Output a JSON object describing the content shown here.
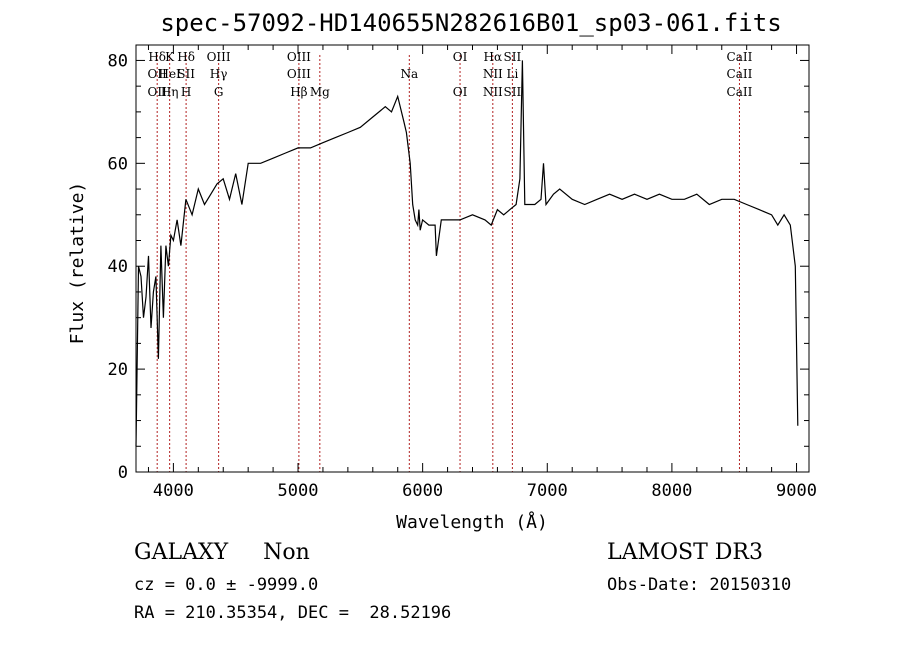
{
  "chart_data": {
    "type": "line",
    "title": "spec-57092-HD140655N282616B01_sp03-061.fits",
    "xlabel": "Wavelength (Å)",
    "ylabel": "Flux (relative)",
    "xlim": [
      3700,
      9100
    ],
    "ylim": [
      0,
      83
    ],
    "x_ticks": [
      4000,
      5000,
      6000,
      7000,
      8000,
      9000
    ],
    "y_ticks": [
      0,
      20,
      40,
      60,
      80
    ],
    "grid": false,
    "series": [
      {
        "x": [
          3700,
          3720,
          3740,
          3760,
          3780,
          3800,
          3820,
          3840,
          3860,
          3880,
          3900,
          3920,
          3940,
          3960,
          3980,
          4000,
          4030,
          4060,
          4100,
          4150,
          4200,
          4250,
          4300,
          4350,
          4400,
          4450,
          4500,
          4550,
          4600,
          4700,
          4800,
          4900,
          5000,
          5100,
          5200,
          5300,
          5400,
          5500,
          5600,
          5700,
          5750,
          5800,
          5850,
          5870,
          5900,
          5920,
          5940,
          5960,
          5970,
          5980,
          6000,
          6050,
          6100,
          6110,
          6150,
          6200,
          6300,
          6400,
          6500,
          6550,
          6600,
          6650,
          6700,
          6750,
          6780,
          6800,
          6820,
          6850,
          6900,
          6950,
          6970,
          6990,
          7050,
          7100,
          7200,
          7300,
          7400,
          7500,
          7600,
          7700,
          7800,
          7900,
          8000,
          8100,
          8200,
          8300,
          8400,
          8500,
          8600,
          8700,
          8800,
          8850,
          8900,
          8950,
          8970,
          8990,
          9010
        ],
        "values": [
          5,
          40,
          38,
          30,
          34,
          42,
          28,
          35,
          38,
          22,
          44,
          30,
          44,
          40,
          46,
          45,
          49,
          44,
          53,
          50,
          55,
          52,
          54,
          56,
          57,
          53,
          58,
          52,
          60,
          60,
          61,
          62,
          63,
          63,
          64,
          65,
          66,
          67,
          69,
          71,
          70,
          73,
          68,
          66,
          60,
          52,
          49,
          48,
          51,
          47,
          49,
          48,
          48,
          42,
          49,
          49,
          49,
          50,
          49,
          48,
          51,
          50,
          51,
          52,
          57,
          80,
          52,
          52,
          52,
          53,
          60,
          52,
          54,
          55,
          53,
          52,
          53,
          54,
          53,
          54,
          53,
          54,
          53,
          53,
          54,
          52,
          53,
          53,
          52,
          51,
          50,
          48,
          50,
          48,
          44,
          40,
          9
        ]
      }
    ],
    "line_labels": [
      {
        "x": 3870,
        "lines": [
          [
            "Hδ",
            0
          ],
          [
            "OII",
            1
          ],
          [
            "OII",
            2
          ]
        ]
      },
      {
        "x": 3970,
        "lines": [
          [
            "K",
            0
          ],
          [
            "HeI",
            1
          ],
          [
            "Hη",
            2
          ]
        ]
      },
      {
        "x": 4102,
        "lines": [
          [
            "Hδ",
            0
          ],
          [
            "SII",
            1
          ],
          [
            "H",
            2
          ]
        ]
      },
      {
        "x": 4363,
        "lines": [
          [
            "OIII",
            0
          ],
          [
            "Hγ",
            1
          ],
          [
            "G",
            2
          ]
        ]
      },
      {
        "x": 5007,
        "lines": [
          [
            "OIII",
            0
          ],
          [
            "OIII",
            1
          ],
          [
            "Hβ",
            2
          ]
        ]
      },
      {
        "x": 5175,
        "lines": [
          [
            "Mg",
            2
          ]
        ]
      },
      {
        "x": 5893,
        "lines": [
          [
            "Na",
            1
          ]
        ]
      },
      {
        "x": 6300,
        "lines": [
          [
            "OI",
            0
          ],
          [
            "OI",
            2
          ]
        ]
      },
      {
        "x": 6563,
        "lines": [
          [
            "Hα",
            0
          ],
          [
            "NII",
            1
          ],
          [
            "NII",
            2
          ]
        ]
      },
      {
        "x": 6720,
        "lines": [
          [
            "SII",
            0
          ],
          [
            "Li",
            1
          ],
          [
            "SII",
            2
          ]
        ]
      },
      {
        "x": 8542,
        "lines": [
          [
            "CaII",
            0
          ],
          [
            "CaII",
            1
          ],
          [
            "CaII",
            2
          ]
        ]
      }
    ]
  },
  "info": {
    "class_line": "GALAXY     Non",
    "cz_line": "cz = 0.0 ± -9999.0",
    "coord_line": "RA = 210.35354, DEC =  28.52196",
    "survey": "LAMOST DR3",
    "obs_date": "Obs-Date: 20150310"
  }
}
